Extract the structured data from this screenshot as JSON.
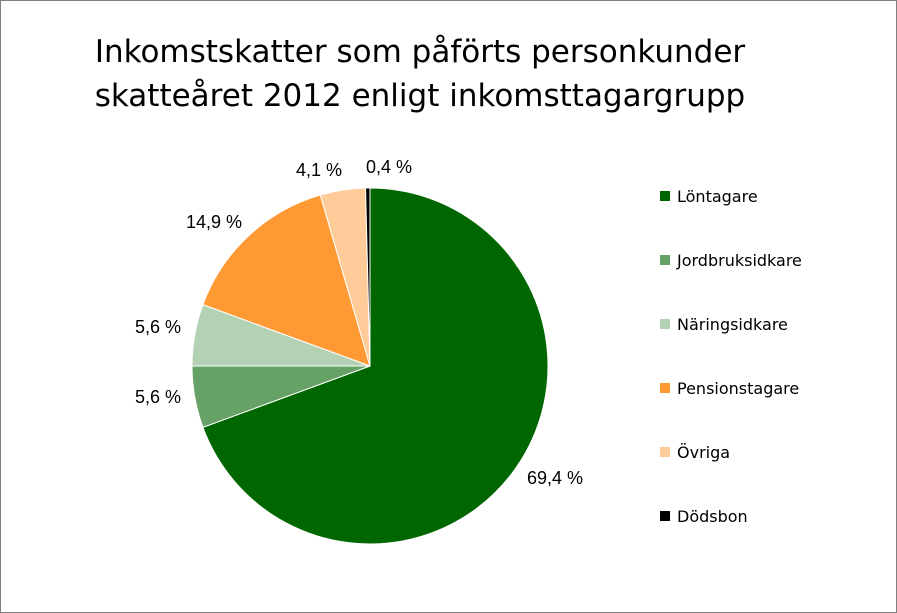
{
  "title_lines": [
    "Inkomstskatter som påförts personkunder",
    "skatteåret 2012 enligt inkomsttagargrupp"
  ],
  "chart_data": {
    "type": "pie",
    "title": "Inkomstskatter som påförts personkunder skatteåret 2012 enligt inkomsttagargrupp",
    "legend_position": "right",
    "slices": [
      {
        "name": "Löntagare",
        "value": 69.4,
        "label": "69,4 %",
        "color": "#006600"
      },
      {
        "name": "Jordbruksidkare",
        "value": 5.6,
        "label": "5,6 %",
        "color": "#66a266"
      },
      {
        "name": "Näringsidkare",
        "value": 5.6,
        "label": "5,6 %",
        "color": "#b3d1b3"
      },
      {
        "name": "Pensionstagare",
        "value": 14.9,
        "label": "14,9 %",
        "color": "#ff9933"
      },
      {
        "name": "Övriga",
        "value": 4.1,
        "label": "4,1 %",
        "color": "#ffcc99"
      },
      {
        "name": "Dödsbon",
        "value": 0.4,
        "label": "0,4 %",
        "color": "#000000"
      }
    ]
  }
}
